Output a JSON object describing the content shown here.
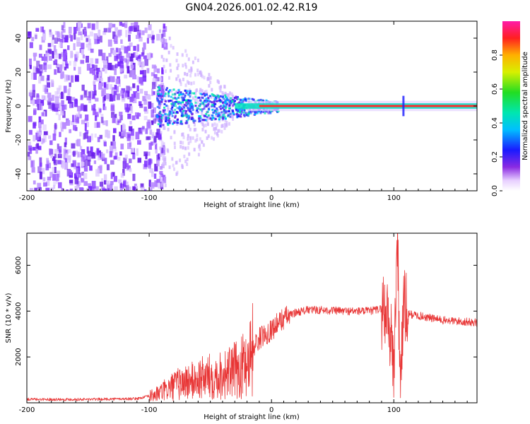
{
  "title": "GN04.2026.001.02.42.R19",
  "chart_data": [
    {
      "type": "heatmap",
      "xlabel": "Height of straight line (km)",
      "ylabel": "Frequency (Hz)",
      "xlim": [
        -200,
        168
      ],
      "ylim": [
        -50,
        50
      ],
      "x_ticks": [
        -200,
        -100,
        0,
        100
      ],
      "y_ticks": [
        -40,
        -20,
        0,
        20,
        40
      ],
      "colorbar": {
        "label": "Normalized spectral amplitude",
        "range": [
          0,
          1
        ],
        "ticks": [
          "0.0",
          "0.2",
          "0.4",
          "0.6",
          "0.8"
        ]
      },
      "colors": {
        "noise": "#7b2cff",
        "mid": "#00e0c0",
        "peak": "#ff2a2a"
      }
    },
    {
      "type": "line",
      "xlabel": "Height of straight line (km)",
      "ylabel": "SNR (10 * v/v)",
      "xlim": [
        -200,
        168
      ],
      "ylim": [
        0,
        7400
      ],
      "x_ticks": [
        -200,
        -100,
        0,
        100
      ],
      "y_ticks": [
        2000,
        4000,
        6000
      ],
      "color": "#e83535",
      "series": [
        {
          "x": [
            -200,
            -150,
            -110,
            -95,
            -85,
            -75,
            -65,
            -55,
            -45,
            -35,
            -25,
            -20,
            -15,
            -10,
            0,
            10,
            20,
            30,
            40,
            60,
            80,
            90,
            95,
            100,
            103,
            105,
            108,
            110,
            120,
            140,
            168
          ],
          "y": [
            150,
            150,
            180,
            350,
            600,
            850,
            950,
            1100,
            1200,
            1300,
            1500,
            1900,
            2400,
            2800,
            3200,
            3700,
            3950,
            4050,
            4050,
            4000,
            4000,
            4100,
            4000,
            1500,
            7400,
            900,
            4200,
            3900,
            3800,
            3600,
            3500
          ]
        }
      ]
    }
  ]
}
